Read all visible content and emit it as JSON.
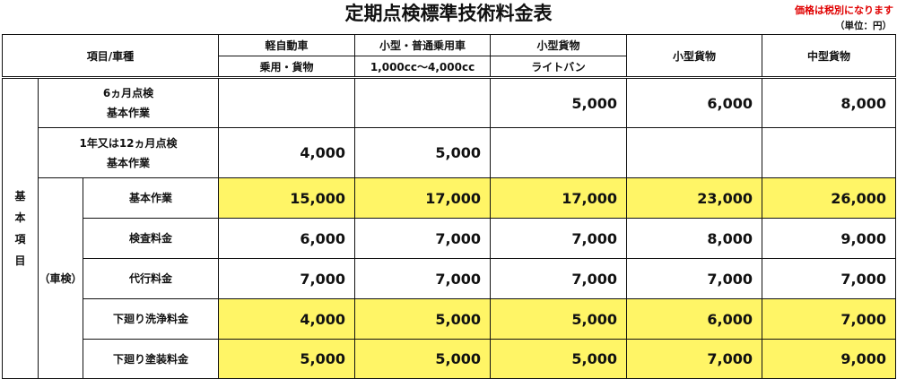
{
  "title": "定期点検標準技術料金表",
  "note": "価格は税別になります",
  "unit": "（単位：円）",
  "header": {
    "item_col": "項目/車種",
    "columns": [
      {
        "top": "軽自動車",
        "bottom": "乗用・貨物"
      },
      {
        "top": "小型・普通乗用車",
        "bottom": "1,000cc～4,000cc"
      },
      {
        "top": "小型貨物",
        "bottom": "ライトバン"
      },
      {
        "top": "小型貨物"
      },
      {
        "top": "中型貨物"
      }
    ]
  },
  "group_label": [
    "基",
    "本",
    "項",
    "目"
  ],
  "shaken_label": "（車検）",
  "rows": [
    {
      "label": [
        "6ヵ月点検",
        "基本作業"
      ],
      "values": [
        "",
        "",
        "5,000",
        "6,000",
        "8,000"
      ],
      "highlight": false
    },
    {
      "label": [
        "1年又は12ヵ月点検",
        "基本作業"
      ],
      "values": [
        "4,000",
        "5,000",
        "",
        "",
        ""
      ],
      "highlight": false
    },
    {
      "label": [
        "基本作業"
      ],
      "values": [
        "15,000",
        "17,000",
        "17,000",
        "23,000",
        "26,000"
      ],
      "highlight": true
    },
    {
      "label": [
        "検査料金"
      ],
      "values": [
        "6,000",
        "7,000",
        "7,000",
        "8,000",
        "9,000"
      ],
      "highlight": false
    },
    {
      "label": [
        "代行料金"
      ],
      "values": [
        "7,000",
        "7,000",
        "7,000",
        "7,000",
        "7,000"
      ],
      "highlight": false
    },
    {
      "label": [
        "下廻り洗浄料金"
      ],
      "values": [
        "4,000",
        "5,000",
        "5,000",
        "6,000",
        "7,000"
      ],
      "highlight": true
    },
    {
      "label": [
        "下廻り塗装料金"
      ],
      "values": [
        "5,000",
        "5,000",
        "5,000",
        "7,000",
        "9,000"
      ],
      "highlight": true
    }
  ],
  "colors": {
    "highlight": "#fff566",
    "note": "#e00000"
  }
}
